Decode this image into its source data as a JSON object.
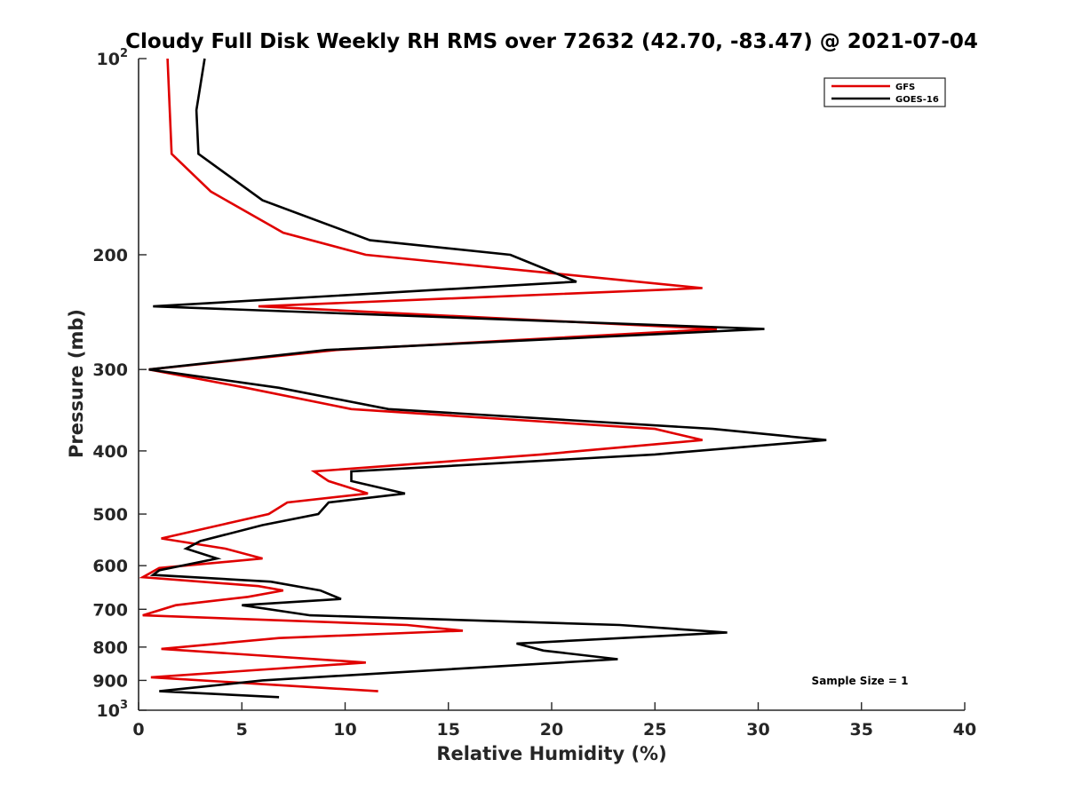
{
  "chart_data": {
    "type": "line",
    "title": "Cloudy Full Disk Weekly RH RMS over 72632 (42.70, -83.47) @ 2021-07-04",
    "xlabel": "Relative Humidity (%)",
    "ylabel": "Pressure (mb)",
    "xlim": [
      0,
      40
    ],
    "ylim": [
      100,
      1000
    ],
    "y_scale": "log",
    "y_reversed": true,
    "x_ticks": [
      "0",
      "5",
      "10",
      "15",
      "20",
      "25",
      "30",
      "35",
      "40"
    ],
    "y_ticks": [
      {
        "value": 100,
        "base": "10",
        "exp": "2"
      },
      {
        "value": 200,
        "base": "200",
        "exp": ""
      },
      {
        "value": 300,
        "base": "300",
        "exp": ""
      },
      {
        "value": 400,
        "base": "400",
        "exp": ""
      },
      {
        "value": 500,
        "base": "500",
        "exp": ""
      },
      {
        "value": 600,
        "base": "600",
        "exp": ""
      },
      {
        "value": 700,
        "base": "700",
        "exp": ""
      },
      {
        "value": 800,
        "base": "800",
        "exp": ""
      },
      {
        "value": 900,
        "base": "900",
        "exp": ""
      },
      {
        "value": 1000,
        "base": "10",
        "exp": "3"
      }
    ],
    "grid": false,
    "legend_position": "top-right",
    "annotation": "Sample Size = 1",
    "series": [
      {
        "name": "GFS",
        "color": "#e00000",
        "points": [
          [
            1.4,
            100
          ],
          [
            1.6,
            140
          ],
          [
            3.5,
            160
          ],
          [
            7,
            185
          ],
          [
            11,
            200
          ],
          [
            27.3,
            225
          ],
          [
            5.8,
            240
          ],
          [
            28,
            260
          ],
          [
            9.6,
            280
          ],
          [
            0.5,
            300
          ],
          [
            5.2,
            320
          ],
          [
            10.3,
            345
          ],
          [
            25,
            370
          ],
          [
            27.3,
            385
          ],
          [
            19.5,
            405
          ],
          [
            8.5,
            430
          ],
          [
            9.2,
            445
          ],
          [
            11.1,
            465
          ],
          [
            7.2,
            480
          ],
          [
            6.3,
            500
          ],
          [
            4.5,
            515
          ],
          [
            1.1,
            545
          ],
          [
            4.2,
            565
          ],
          [
            6,
            585
          ],
          [
            1,
            605
          ],
          [
            0.2,
            625
          ],
          [
            5.8,
            645
          ],
          [
            7,
            655
          ],
          [
            5.3,
            670
          ],
          [
            1.8,
            690
          ],
          [
            0.2,
            715
          ],
          [
            13,
            740
          ],
          [
            15.7,
            755
          ],
          [
            6.8,
            775
          ],
          [
            1.1,
            805
          ],
          [
            11,
            845
          ],
          [
            0.6,
            890
          ],
          [
            11.6,
            935
          ]
        ]
      },
      {
        "name": "GOES-16",
        "color": "#000000",
        "points": [
          [
            3.2,
            100
          ],
          [
            2.8,
            120
          ],
          [
            2.9,
            140
          ],
          [
            6,
            165
          ],
          [
            11.2,
            190
          ],
          [
            18,
            200
          ],
          [
            21.2,
            220
          ],
          [
            0.7,
            240
          ],
          [
            30.3,
            260
          ],
          [
            9.1,
            280
          ],
          [
            0.5,
            300
          ],
          [
            6.8,
            320
          ],
          [
            12.1,
            345
          ],
          [
            27.8,
            370
          ],
          [
            33.3,
            385
          ],
          [
            25,
            405
          ],
          [
            10.3,
            430
          ],
          [
            10.3,
            445
          ],
          [
            12.9,
            465
          ],
          [
            9.2,
            480
          ],
          [
            8.7,
            500
          ],
          [
            6,
            520
          ],
          [
            3,
            550
          ],
          [
            2.3,
            565
          ],
          [
            3.8,
            585
          ],
          [
            1,
            610
          ],
          [
            0.7,
            620
          ],
          [
            6.4,
            635
          ],
          [
            8.8,
            655
          ],
          [
            9.8,
            675
          ],
          [
            5,
            690
          ],
          [
            8.3,
            715
          ],
          [
            23.3,
            740
          ],
          [
            28.5,
            760
          ],
          [
            18.3,
            790
          ],
          [
            19.6,
            810
          ],
          [
            23.2,
            835
          ],
          [
            6,
            900
          ],
          [
            1,
            935
          ],
          [
            6.8,
            955
          ]
        ]
      }
    ]
  }
}
